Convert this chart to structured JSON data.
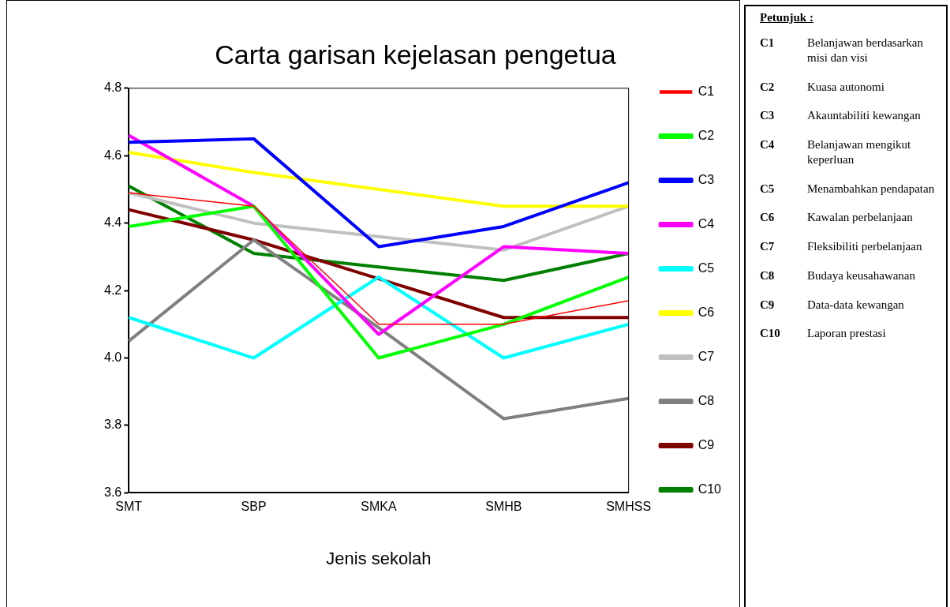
{
  "chart_data": [
    {
      "type": "line",
      "title": "Carta garisan kejelasan pengetua",
      "xlabel": "Jenis sekolah",
      "categories": [
        "SMT",
        "SBP",
        "SMKA",
        "SMHB",
        "SMHSS"
      ],
      "series": [
        {
          "name": "C1",
          "color": "#ff0000",
          "values": [
            4.49,
            4.45,
            4.1,
            4.1,
            4.17
          ]
        },
        {
          "name": "C2",
          "color": "#00ff00",
          "values": [
            4.39,
            4.45,
            4.0,
            4.1,
            4.24
          ]
        },
        {
          "name": "C3",
          "color": "#0000ff",
          "values": [
            4.64,
            4.65,
            4.33,
            4.39,
            4.52
          ]
        },
        {
          "name": "C4",
          "color": "#ff00ff",
          "values": [
            4.66,
            4.45,
            4.07,
            4.33,
            4.31
          ]
        },
        {
          "name": "C5",
          "color": "#00ffff",
          "values": [
            4.12,
            4.0,
            4.24,
            4.0,
            4.1
          ]
        },
        {
          "name": "C6",
          "color": "#ffff00",
          "values": [
            4.61,
            4.55,
            null,
            4.45,
            4.45
          ]
        },
        {
          "name": "C7",
          "color": "#c0c0c0",
          "values": [
            4.49,
            4.4,
            null,
            4.32,
            4.45
          ]
        },
        {
          "name": "C8",
          "color": "#808080",
          "values": [
            4.05,
            4.35,
            4.09,
            3.82,
            3.88
          ]
        },
        {
          "name": "C9",
          "color": "#800000",
          "values": [
            4.44,
            4.35,
            null,
            4.12,
            4.12
          ]
        },
        {
          "name": "C10",
          "color": "#008000",
          "values": [
            4.51,
            4.31,
            null,
            4.23,
            4.31
          ]
        }
      ],
      "ylim": [
        3.6,
        4.8
      ],
      "yticks": [
        3.6,
        3.8,
        {
          "value": 4,
          "label": "4.0"
        },
        4.2,
        4.4,
        4.6,
        4.8
      ],
      "grid": false,
      "legend": "right",
      "marker": "none",
      "line_style": "solid"
    },
    {
      "type": "other",
      "title": "Petunjuk :",
      "annotations": [
        "C1 Belanjawan berdasarkan misi dan visi",
        "C2 Kuasa autonomi",
        "C3 Akauntabiliti kewangan",
        "C4 Belanjawan mengikut keperluan",
        "C5 Menambahkan pendapatan",
        "C6 Kawalan perbelanjaan",
        "C7 Fleksibiliti perbelanjaan",
        "C8 Budaya keusahawanan",
        "C9 Data-data kewangan",
        "C10 Laporan prestasi"
      ]
    }
  ]
}
